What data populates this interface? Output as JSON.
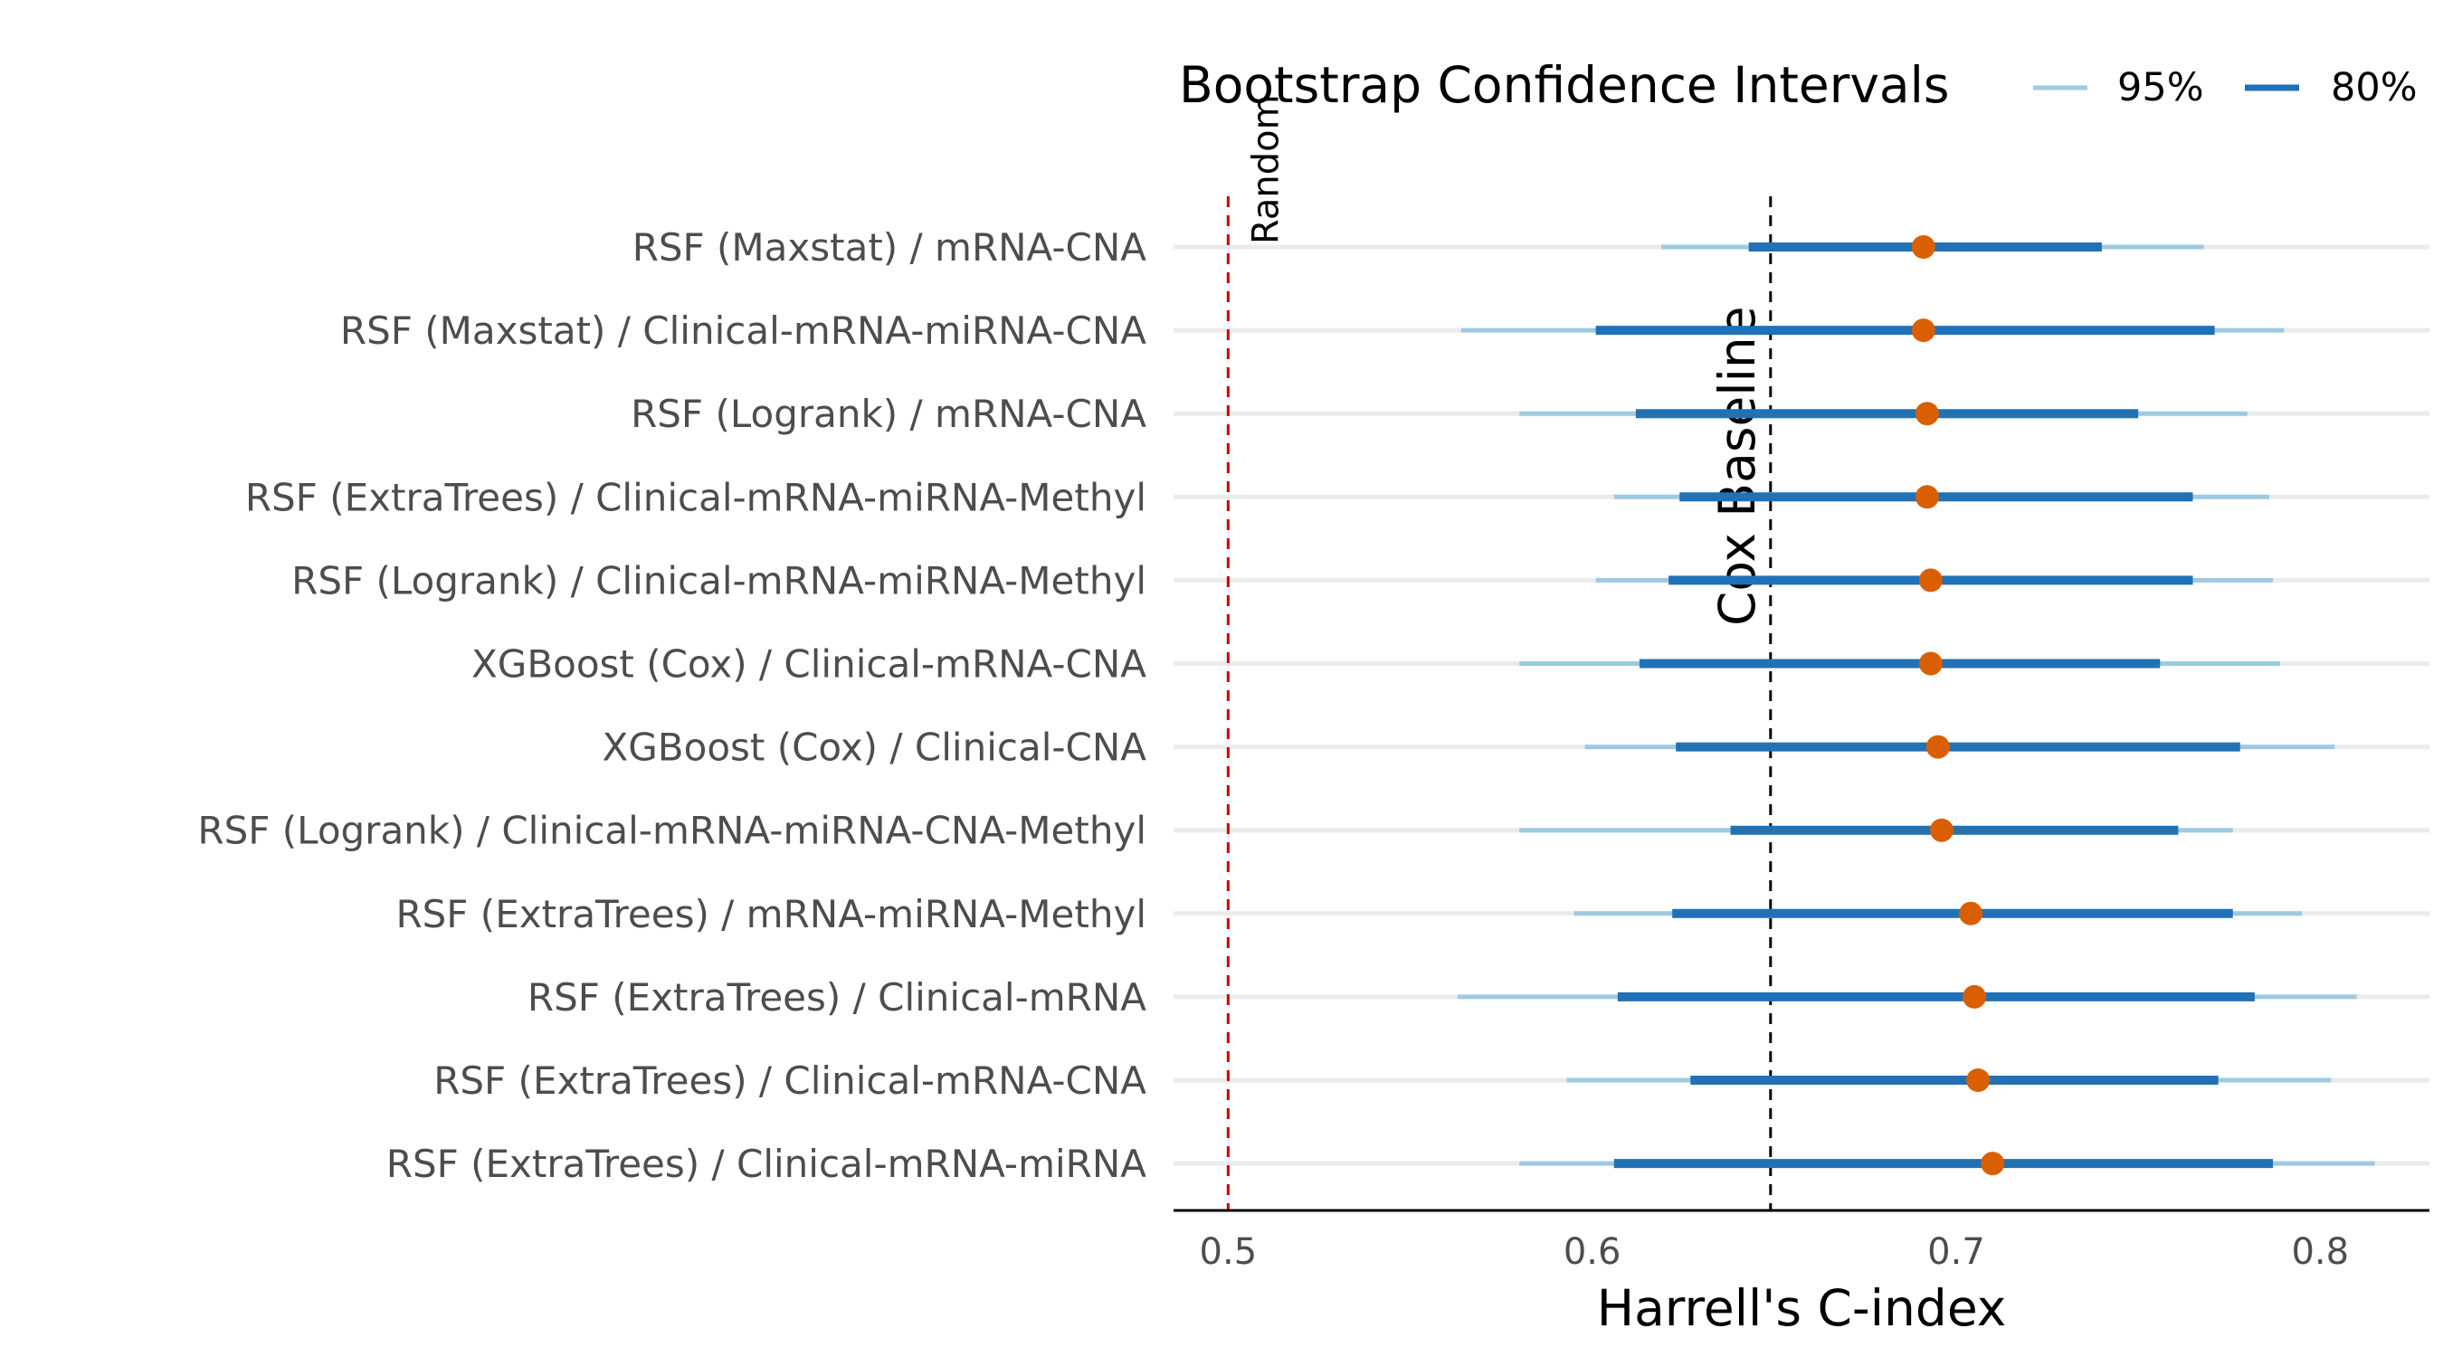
{
  "chart_data": {
    "type": "interval",
    "xlabel": "Harrell's C-index",
    "xlim": [
      0.485,
      0.83
    ],
    "xticks": [
      0.5,
      0.6,
      0.7,
      0.8
    ],
    "xtick_labels": [
      "0.5",
      "0.6",
      "0.7",
      "0.8"
    ],
    "grid": "horizontal-per-row",
    "legend": {
      "title": "Bootstrap Confidence Intervals",
      "placement": "top",
      "items": [
        {
          "label": "95%",
          "color": "#9ecae1"
        },
        {
          "label": "80%",
          "color": "#2171b5"
        }
      ]
    },
    "colors": {
      "ci95": "#9ecae1",
      "ci80": "#2171b5",
      "point": "#d95f02",
      "grid": "#ebebeb",
      "random_line": "#cc0000",
      "cox_line": "#000000"
    },
    "reference_lines": [
      {
        "label": "Random",
        "x": 0.5,
        "color": "#cc0000"
      },
      {
        "label": "Cox Baseline",
        "x": 0.649,
        "color": "#000000"
      }
    ],
    "rows": [
      {
        "label": "RSF (Maxstat) / mRNA-CNA",
        "point": 0.691,
        "ci95": [
          0.619,
          0.768
        ],
        "ci80": [
          0.643,
          0.74
        ]
      },
      {
        "label": "RSF (Maxstat) / Clinical-mRNA-miRNA-CNA",
        "point": 0.691,
        "ci95": [
          0.564,
          0.79
        ],
        "ci80": [
          0.601,
          0.771
        ]
      },
      {
        "label": "RSF (Logrank) / mRNA-CNA",
        "point": 0.692,
        "ci95": [
          0.58,
          0.78
        ],
        "ci80": [
          0.612,
          0.75
        ]
      },
      {
        "label": "RSF (ExtraTrees) / Clinical-mRNA-miRNA-Methyl",
        "point": 0.692,
        "ci95": [
          0.606,
          0.786
        ],
        "ci80": [
          0.624,
          0.765
        ]
      },
      {
        "label": "RSF (Logrank) / Clinical-mRNA-miRNA-Methyl",
        "point": 0.693,
        "ci95": [
          0.601,
          0.787
        ],
        "ci80": [
          0.621,
          0.765
        ]
      },
      {
        "label": "XGBoost (Cox) / Clinical-mRNA-CNA",
        "point": 0.693,
        "ci95": [
          0.58,
          0.789
        ],
        "ci80": [
          0.613,
          0.756
        ]
      },
      {
        "label": "XGBoost (Cox) / Clinical-CNA",
        "point": 0.695,
        "ci95": [
          0.598,
          0.804
        ],
        "ci80": [
          0.623,
          0.778
        ]
      },
      {
        "label": "RSF (Logrank) / Clinical-mRNA-miRNA-CNA-Methyl",
        "point": 0.696,
        "ci95": [
          0.58,
          0.776
        ],
        "ci80": [
          0.638,
          0.761
        ]
      },
      {
        "label": "RSF (ExtraTrees) / mRNA-miRNA-Methyl",
        "point": 0.704,
        "ci95": [
          0.595,
          0.795
        ],
        "ci80": [
          0.622,
          0.776
        ]
      },
      {
        "label": "RSF (ExtraTrees) / Clinical-mRNA",
        "point": 0.705,
        "ci95": [
          0.563,
          0.81
        ],
        "ci80": [
          0.607,
          0.782
        ]
      },
      {
        "label": "RSF (ExtraTrees) / Clinical-mRNA-CNA",
        "point": 0.706,
        "ci95": [
          0.593,
          0.803
        ],
        "ci80": [
          0.627,
          0.772
        ]
      },
      {
        "label": "RSF (ExtraTrees) / Clinical-mRNA-miRNA",
        "point": 0.71,
        "ci95": [
          0.58,
          0.815
        ],
        "ci80": [
          0.606,
          0.787
        ]
      }
    ]
  }
}
